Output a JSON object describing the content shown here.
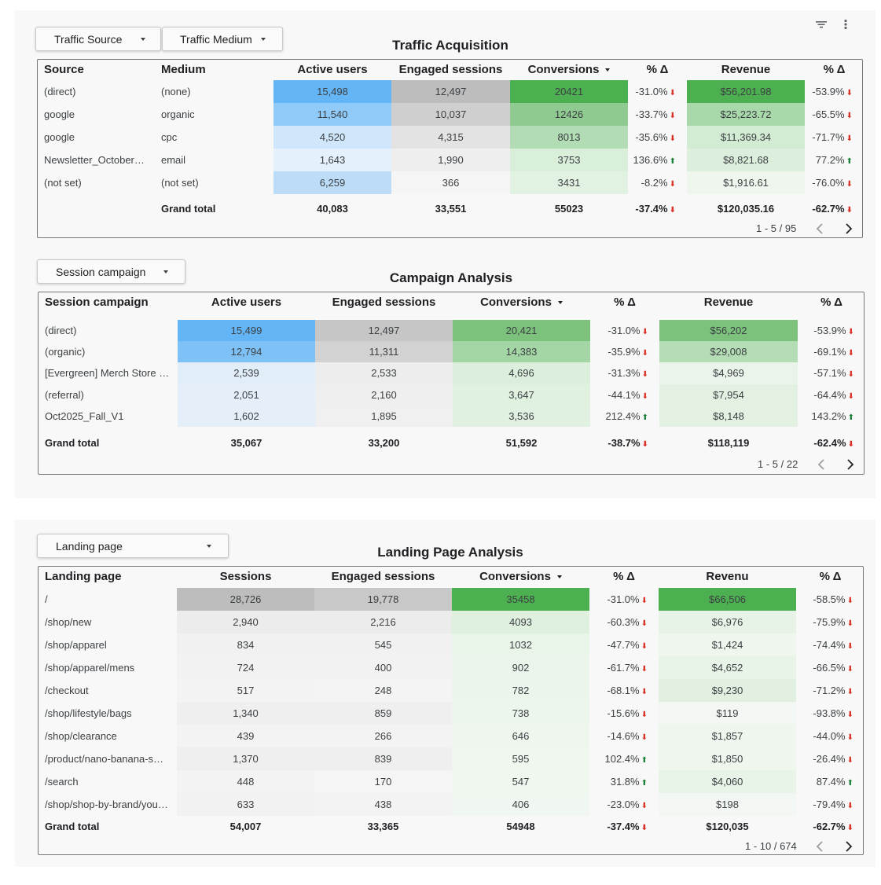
{
  "icons": {
    "filter": "filter-icon",
    "more": "more-vert-icon",
    "dropdown": "caret-down-icon",
    "prev": "chevron-left-icon",
    "next": "chevron-right-icon"
  },
  "colors": {
    "blue_strong": "#64b5f6",
    "green_strong": "#4caf50",
    "gray_strong": "#bdbdbd",
    "arrow_down": "#d93025",
    "arrow_up": "#188038"
  },
  "traffic": {
    "title": "Traffic Acquisition",
    "filters": [
      {
        "label": "Traffic Source"
      },
      {
        "label": "Traffic Medium"
      }
    ],
    "headers": [
      "Source",
      "Medium",
      "Active users",
      "Engaged sessions",
      "Conversions",
      "% Δ",
      "Revenue",
      "% Δ"
    ],
    "rows": [
      {
        "source": "(direct)",
        "medium": "(none)",
        "users": "15,498",
        "engaged": "12,497",
        "conv": "20421",
        "conv_pct": "-31.0%",
        "conv_dir": "down",
        "revenue": "$56,201.98",
        "rev_pct": "-53.9%",
        "rev_dir": "down"
      },
      {
        "source": "google",
        "medium": "organic",
        "users": "11,540",
        "engaged": "10,037",
        "conv": "12426",
        "conv_pct": "-33.7%",
        "conv_dir": "down",
        "revenue": "$25,223.72",
        "rev_pct": "-65.5%",
        "rev_dir": "down"
      },
      {
        "source": "google",
        "medium": "cpc",
        "users": "4,520",
        "engaged": "4,315",
        "conv": "8013",
        "conv_pct": "-35.6%",
        "conv_dir": "down",
        "revenue": "$11,369.34",
        "rev_pct": "-71.7%",
        "rev_dir": "down"
      },
      {
        "source": "Newsletter_October…",
        "medium": "email",
        "users": "1,643",
        "engaged": "1,990",
        "conv": "3753",
        "conv_pct": "136.6%",
        "conv_dir": "up",
        "revenue": "$8,821.68",
        "rev_pct": "77.2%",
        "rev_dir": "up"
      },
      {
        "source": "(not set)",
        "medium": "(not set)",
        "users": "6,259",
        "engaged": "366",
        "conv": "3431",
        "conv_pct": "-8.2%",
        "conv_dir": "down",
        "revenue": "$1,916.61",
        "rev_pct": "-76.0%",
        "rev_dir": "down"
      }
    ],
    "total": {
      "label": "Grand total",
      "users": "40,083",
      "engaged": "33,551",
      "conv": "55023",
      "conv_pct": "-37.4%",
      "conv_dir": "down",
      "revenue": "$120,035.16",
      "rev_pct": "-62.7%",
      "rev_dir": "down"
    },
    "pagination": "1 - 5 / 95"
  },
  "campaign": {
    "title": "Campaign Analysis",
    "filters": [
      {
        "label": "Session campaign"
      }
    ],
    "headers": [
      "Session campaign",
      "Active users",
      "Engaged sessions",
      "Conversions",
      "% Δ",
      "Revenue",
      "% Δ"
    ],
    "rows": [
      {
        "campaign": "(direct)",
        "users": "15,499",
        "engaged": "12,497",
        "conv": "20,421",
        "conv_pct": "-31.0%",
        "conv_dir": "down",
        "revenue": "$56,202",
        "rev_pct": "-53.9%",
        "rev_dir": "down"
      },
      {
        "campaign": "(organic)",
        "users": "12,794",
        "engaged": "11,311",
        "conv": "14,383",
        "conv_pct": "-35.9%",
        "conv_dir": "down",
        "revenue": "$29,008",
        "rev_pct": "-69.1%",
        "rev_dir": "down"
      },
      {
        "campaign": "[Evergreen] Merch Store …",
        "users": "2,539",
        "engaged": "2,533",
        "conv": "4,696",
        "conv_pct": "-31.3%",
        "conv_dir": "down",
        "revenue": "$4,969",
        "rev_pct": "-57.1%",
        "rev_dir": "down"
      },
      {
        "campaign": "(referral)",
        "users": "2,051",
        "engaged": "2,160",
        "conv": "3,647",
        "conv_pct": "-44.1%",
        "conv_dir": "down",
        "revenue": "$7,954",
        "rev_pct": "-64.4%",
        "rev_dir": "down"
      },
      {
        "campaign": "Oct2025_Fall_V1",
        "users": "1,602",
        "engaged": "1,895",
        "conv": "3,536",
        "conv_pct": "212.4%",
        "conv_dir": "up",
        "revenue": "$8,148",
        "rev_pct": "143.2%",
        "rev_dir": "up"
      }
    ],
    "total": {
      "label": "Grand total",
      "users": "35,067",
      "engaged": "33,200",
      "conv": "51,592",
      "conv_pct": "-38.7%",
      "conv_dir": "down",
      "revenue": "$118,119",
      "rev_pct": "-62.4%",
      "rev_dir": "down"
    },
    "pagination": "1 - 5 / 22"
  },
  "landing": {
    "title": "Landing Page Analysis",
    "filters": [
      {
        "label": "Landing page"
      }
    ],
    "headers": [
      "Landing page",
      "Sessions",
      "Engaged sessions",
      "Conversions",
      "% Δ",
      "Revenu",
      "% Δ"
    ],
    "rows": [
      {
        "page": "/",
        "sessions": "28,726",
        "engaged": "19,778",
        "conv": "35458",
        "conv_pct": "-31.0%",
        "conv_dir": "down",
        "revenue": "$66,506",
        "rev_pct": "-58.5%",
        "rev_dir": "down"
      },
      {
        "page": "/shop/new",
        "sessions": "2,940",
        "engaged": "2,216",
        "conv": "4093",
        "conv_pct": "-60.3%",
        "conv_dir": "down",
        "revenue": "$6,976",
        "rev_pct": "-75.9%",
        "rev_dir": "down"
      },
      {
        "page": "/shop/apparel",
        "sessions": "834",
        "engaged": "545",
        "conv": "1032",
        "conv_pct": "-47.7%",
        "conv_dir": "down",
        "revenue": "$1,424",
        "rev_pct": "-74.4%",
        "rev_dir": "down"
      },
      {
        "page": "/shop/apparel/mens",
        "sessions": "724",
        "engaged": "400",
        "conv": "902",
        "conv_pct": "-61.7%",
        "conv_dir": "down",
        "revenue": "$4,652",
        "rev_pct": "-66.5%",
        "rev_dir": "down"
      },
      {
        "page": "/checkout",
        "sessions": "517",
        "engaged": "248",
        "conv": "782",
        "conv_pct": "-68.1%",
        "conv_dir": "down",
        "revenue": "$9,230",
        "rev_pct": "-71.2%",
        "rev_dir": "down"
      },
      {
        "page": "/shop/lifestyle/bags",
        "sessions": "1,340",
        "engaged": "859",
        "conv": "738",
        "conv_pct": "-15.6%",
        "conv_dir": "down",
        "revenue": "$119",
        "rev_pct": "-93.8%",
        "rev_dir": "down"
      },
      {
        "page": "/shop/clearance",
        "sessions": "439",
        "engaged": "266",
        "conv": "646",
        "conv_pct": "-14.6%",
        "conv_dir": "down",
        "revenue": "$1,857",
        "rev_pct": "-44.0%",
        "rev_dir": "down"
      },
      {
        "page": "/product/nano-banana-s…",
        "sessions": "1,370",
        "engaged": "839",
        "conv": "595",
        "conv_pct": "102.4%",
        "conv_dir": "up",
        "revenue": "$1,850",
        "rev_pct": "-26.4%",
        "rev_dir": "down"
      },
      {
        "page": "/search",
        "sessions": "448",
        "engaged": "170",
        "conv": "547",
        "conv_pct": "31.8%",
        "conv_dir": "up",
        "revenue": "$4,060",
        "rev_pct": "87.4%",
        "rev_dir": "up"
      },
      {
        "page": "/shop/shop-by-brand/you…",
        "sessions": "633",
        "engaged": "438",
        "conv": "406",
        "conv_pct": "-23.0%",
        "conv_dir": "down",
        "revenue": "$198",
        "rev_pct": "-79.4%",
        "rev_dir": "down"
      }
    ],
    "total": {
      "label": "Grand total",
      "sessions": "54,007",
      "engaged": "33,365",
      "conv": "54948",
      "conv_pct": "-37.4%",
      "conv_dir": "down",
      "revenue": "$120,035",
      "rev_pct": "-62.7%",
      "rev_dir": "down"
    },
    "pagination": "1 - 10 / 674"
  }
}
